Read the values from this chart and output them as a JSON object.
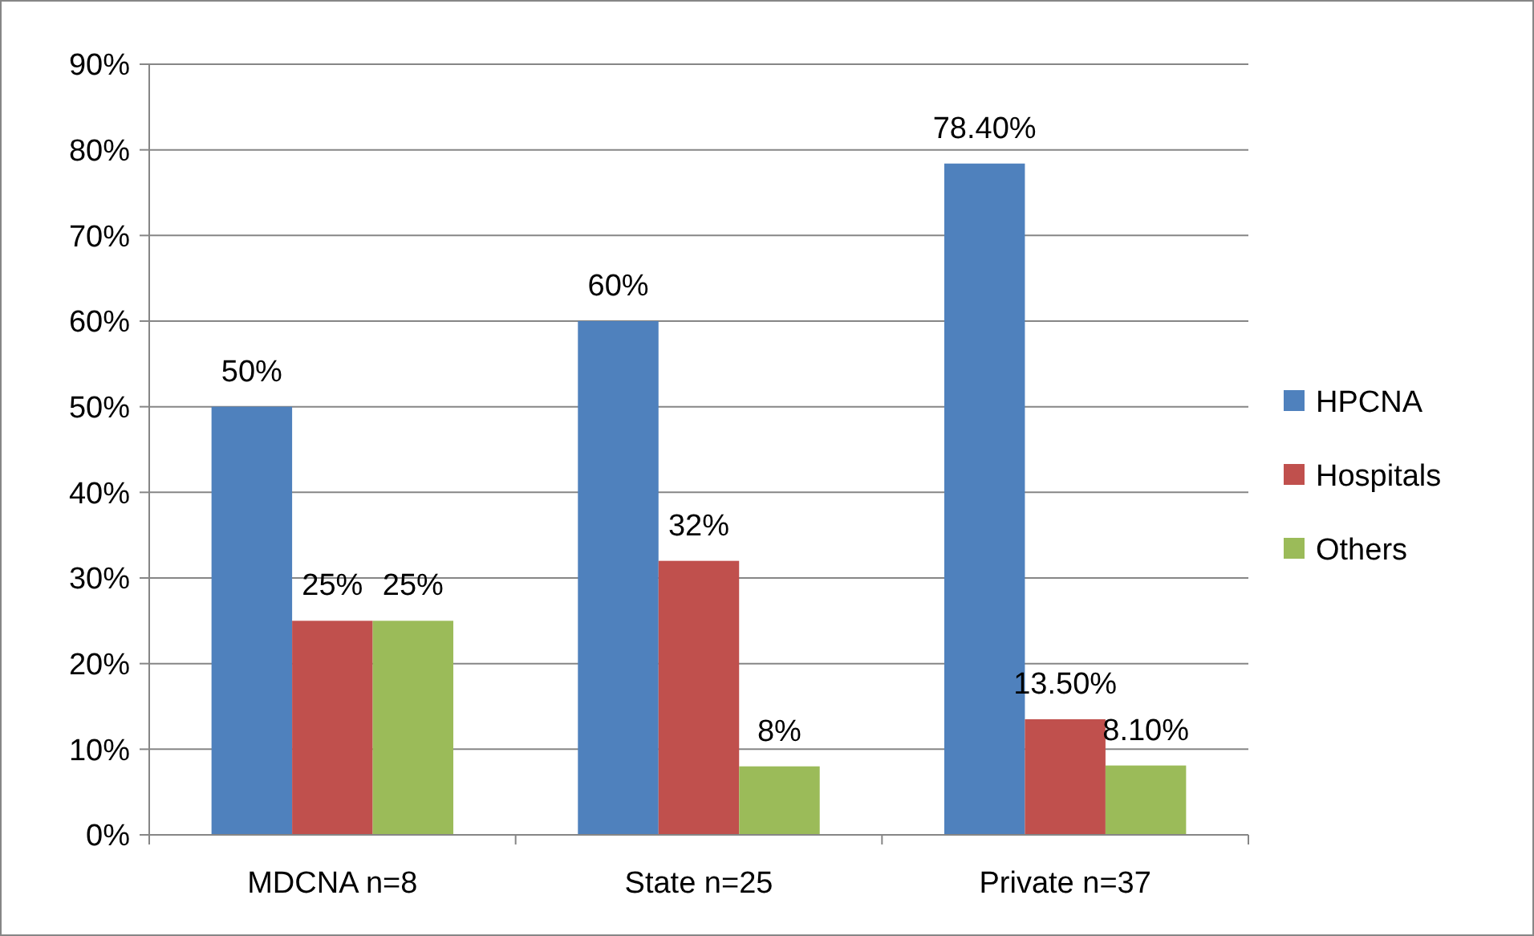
{
  "chart_data": {
    "type": "bar",
    "categories": [
      "MDCNA n=8",
      "State n=25",
      "Private n=37"
    ],
    "series": [
      {
        "name": "HPCNA",
        "color": "#4f81bd",
        "values": [
          50,
          60,
          78.4
        ],
        "value_labels": [
          "50%",
          "60%",
          "78.40%"
        ]
      },
      {
        "name": "Hospitals",
        "color": "#c0504d",
        "values": [
          25,
          32,
          13.5
        ],
        "value_labels": [
          "25%",
          "32%",
          "13.50%"
        ]
      },
      {
        "name": "Others",
        "color": "#9bbb59",
        "values": [
          25,
          8,
          8.1
        ],
        "value_labels": [
          "25%",
          "8%",
          "8.10%"
        ]
      }
    ],
    "ylim": [
      0,
      90
    ],
    "yticks": [
      {
        "value": 0,
        "label": "0%"
      },
      {
        "value": 10,
        "label": "10%"
      },
      {
        "value": 20,
        "label": "20%"
      },
      {
        "value": 30,
        "label": "30%"
      },
      {
        "value": 40,
        "label": "40%"
      },
      {
        "value": 50,
        "label": "50%"
      },
      {
        "value": 60,
        "label": "60%"
      },
      {
        "value": 70,
        "label": "70%"
      },
      {
        "value": 80,
        "label": "80%"
      },
      {
        "value": 90,
        "label": "90%"
      }
    ],
    "grid": "y",
    "legend": "right"
  }
}
